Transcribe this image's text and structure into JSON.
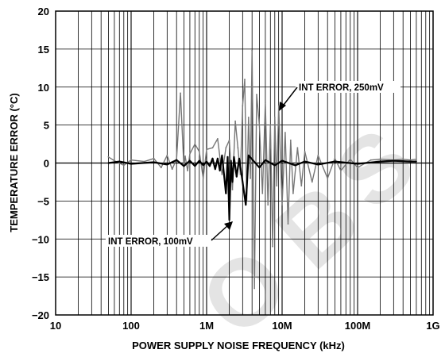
{
  "chart_data": {
    "type": "line",
    "title": "",
    "xlabel": "POWER SUPPLY NOISE FREQUENCY (kHz)",
    "ylabel": "TEMPERATURE ERROR (°C)",
    "x_scale": "log",
    "xlim": [
      10,
      1000000
    ],
    "ylim": [
      -20,
      20
    ],
    "grid": true,
    "x_tick_labels": [
      "10",
      "100",
      "1M",
      "10M",
      "100M",
      "1G"
    ],
    "x_tick_values": [
      10,
      100,
      1000,
      10000,
      100000,
      1000000
    ],
    "y_tick_labels": [
      "20",
      "15",
      "10",
      "5",
      "0",
      "−5",
      "−10",
      "−15",
      "−20"
    ],
    "y_tick_values": [
      20,
      15,
      10,
      5,
      0,
      -5,
      -10,
      -15,
      -20
    ],
    "series": [
      {
        "name": "INT ERROR, 250mV",
        "color": "#777777",
        "x": [
          50,
          60,
          80,
          100,
          150,
          200,
          250,
          300,
          350,
          400,
          450,
          500,
          520,
          560,
          600,
          700,
          800,
          900,
          1000,
          1200,
          1400,
          1600,
          1800,
          2000,
          2200,
          2400,
          2600,
          2800,
          3000,
          3200,
          3400,
          3600,
          3800,
          4000,
          4300,
          4600,
          5000,
          5500,
          6000,
          6500,
          7000,
          7500,
          8000,
          8500,
          9000,
          10000,
          11000,
          12000,
          13000,
          14000,
          16000,
          18000,
          20000,
          25000,
          30000,
          40000,
          50000,
          60000,
          80000,
          100000,
          150000,
          200000,
          300000,
          400000,
          500000,
          600000
        ],
        "y": [
          0.8,
          0.3,
          -0.3,
          0.4,
          0.2,
          0.6,
          -0.6,
          1.0,
          -0.8,
          0.5,
          9.2,
          -0.5,
          0.9,
          -1.0,
          1.2,
          2.5,
          1.5,
          -2.0,
          1.8,
          2.0,
          3.2,
          -1.5,
          2.0,
          3.0,
          -3.5,
          5.5,
          2.0,
          -1.5,
          7.5,
          11.0,
          -5.0,
          6.0,
          -2.0,
          14.8,
          -16.5,
          9.0,
          5.0,
          -4.0,
          8.0,
          -5.5,
          5.0,
          -11.0,
          6.0,
          -3.0,
          7.5,
          -5.5,
          4.0,
          -8.0,
          3.0,
          -4.0,
          2.0,
          -3.0,
          1.5,
          -2.5,
          1.0,
          -2.0,
          0.6,
          -1.0,
          0.5,
          -0.6,
          0.4,
          0.5,
          0.4,
          0.5,
          0.4,
          0.5
        ]
      },
      {
        "name": "INT ERROR, 100mV",
        "color": "#000000",
        "x": [
          50,
          70,
          100,
          200,
          300,
          400,
          500,
          600,
          700,
          800,
          900,
          1000,
          1100,
          1200,
          1300,
          1400,
          1500,
          1600,
          1700,
          1800,
          1900,
          2000,
          2100,
          2200,
          2300,
          2500,
          2700,
          3000,
          3300,
          3600,
          4000,
          5000,
          6000,
          8000,
          10000,
          15000,
          20000,
          30000,
          50000,
          100000,
          200000,
          300000,
          500000,
          600000
        ],
        "y": [
          0.0,
          0.2,
          -0.1,
          0.1,
          -0.2,
          0.4,
          -0.4,
          0.3,
          -0.4,
          0.3,
          -0.3,
          0.2,
          -0.4,
          0.6,
          -0.8,
          0.6,
          -1.0,
          1.0,
          -1.5,
          -4.0,
          0.8,
          -7.5,
          0.3,
          -2.5,
          0.8,
          -1.8,
          0.6,
          -2.5,
          -5.5,
          1.0,
          0.5,
          -0.6,
          0.4,
          -0.3,
          0.3,
          -0.3,
          0.2,
          -0.2,
          0.2,
          -0.1,
          0.2,
          0.3,
          0.2,
          0.2
        ]
      }
    ],
    "annotations": [
      {
        "id": "annot-250",
        "text": "INT ERROR, 250mV"
      },
      {
        "id": "annot-100",
        "text": "INT ERROR, 100mV"
      }
    ],
    "watermark": "OBSOLETE"
  }
}
